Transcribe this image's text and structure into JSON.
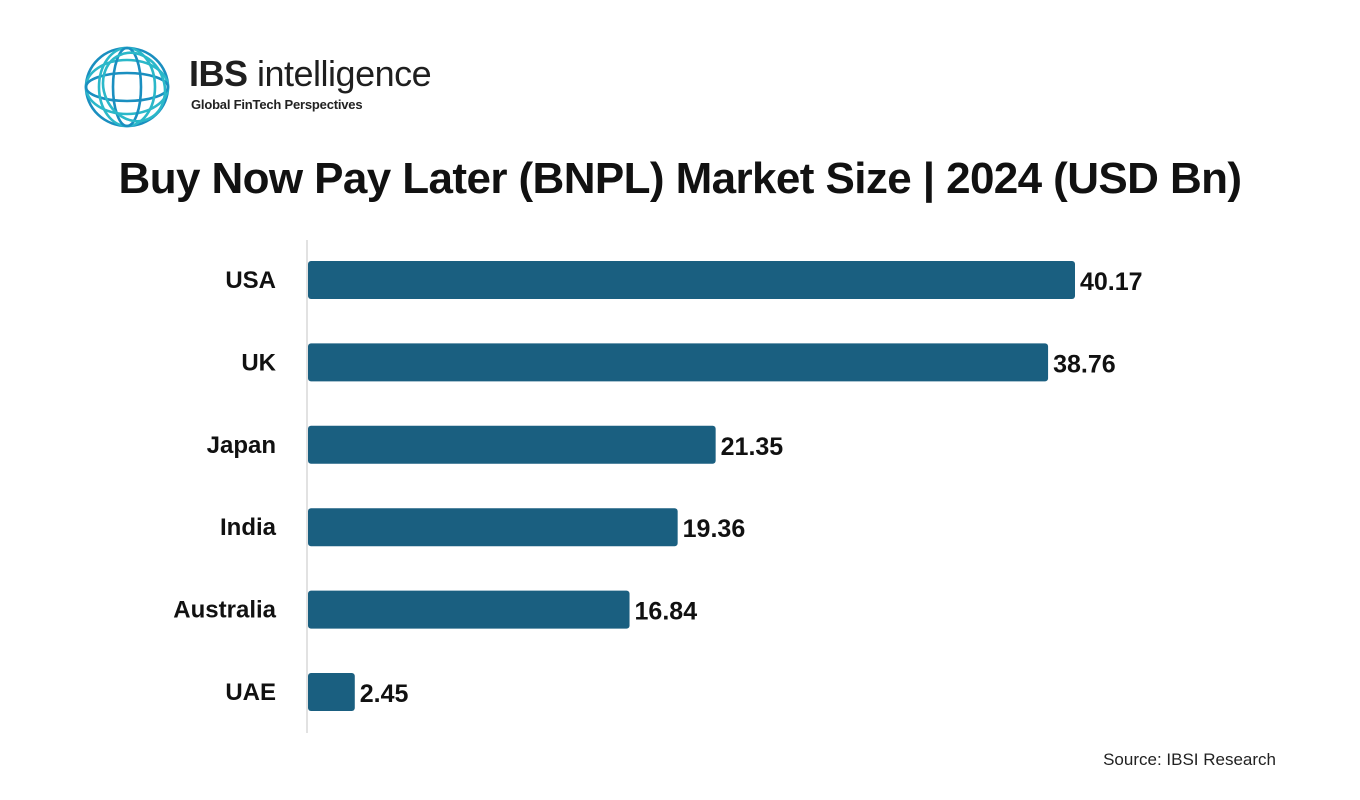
{
  "header": {
    "brand_name_bold": "IBS",
    "brand_name_rest": " intelligence",
    "tagline": "Global FinTech Perspectives",
    "logo_icon": "globe-rings-icon"
  },
  "colors": {
    "bar": "#1a5f80",
    "logo_teal": "#2bb8c9",
    "logo_blue": "#1a8fc0",
    "axis": "#d9d9d9",
    "text": "#111111"
  },
  "chart_data": {
    "type": "bar",
    "orientation": "horizontal",
    "title": "Buy Now Pay Later (BNPL) Market Size | 2024 (USD Bn)",
    "categories": [
      "USA",
      "UK",
      "Japan",
      "India",
      "Australia",
      "UAE"
    ],
    "values": [
      40.17,
      38.76,
      21.35,
      19.36,
      16.84,
      2.45
    ],
    "value_labels": [
      "40.17",
      "38.76",
      "21.35",
      "19.36",
      "16.84",
      "2.45"
    ],
    "xlabel": "",
    "ylabel": "",
    "xlim": [
      0,
      40.17
    ],
    "grid": false,
    "legend": "none"
  },
  "footer": {
    "source": "Source: IBSI Research"
  }
}
